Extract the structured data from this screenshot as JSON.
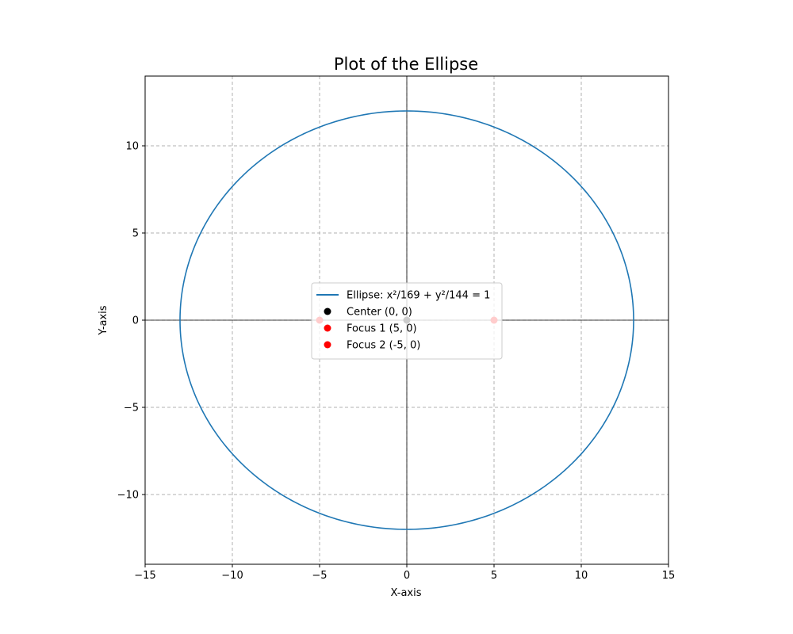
{
  "chart_data": {
    "type": "line",
    "title": "Plot of the Ellipse",
    "xlabel": "X-axis",
    "ylabel": "Y-axis",
    "xlim": [
      -15,
      15
    ],
    "ylim": [
      -14,
      14
    ],
    "xticks": [
      -15,
      -10,
      -5,
      0,
      5,
      10,
      15
    ],
    "yticks": [
      -10,
      -5,
      0,
      5,
      10
    ],
    "xtick_labels": [
      "−15",
      "−10",
      "−5",
      "0",
      "5",
      "10",
      "15"
    ],
    "ytick_labels": [
      "−10",
      "−5",
      "0",
      "5",
      "10"
    ],
    "grid": true,
    "aspect": "equal",
    "legend_position": "center",
    "series": [
      {
        "name": "Ellipse: x²/169 + y²/144 = 1",
        "kind": "curve",
        "a": 13,
        "b": 12,
        "color": "#1f77b4"
      },
      {
        "name": "Center (0, 0)",
        "kind": "point",
        "x": 0,
        "y": 0,
        "color": "#000000"
      },
      {
        "name": "Focus 1 (5, 0)",
        "kind": "point",
        "x": 5,
        "y": 0,
        "color": "#ff0000"
      },
      {
        "name": "Focus 2 (-5, 0)",
        "kind": "point",
        "x": -5,
        "y": 0,
        "color": "#ff0000"
      }
    ]
  }
}
